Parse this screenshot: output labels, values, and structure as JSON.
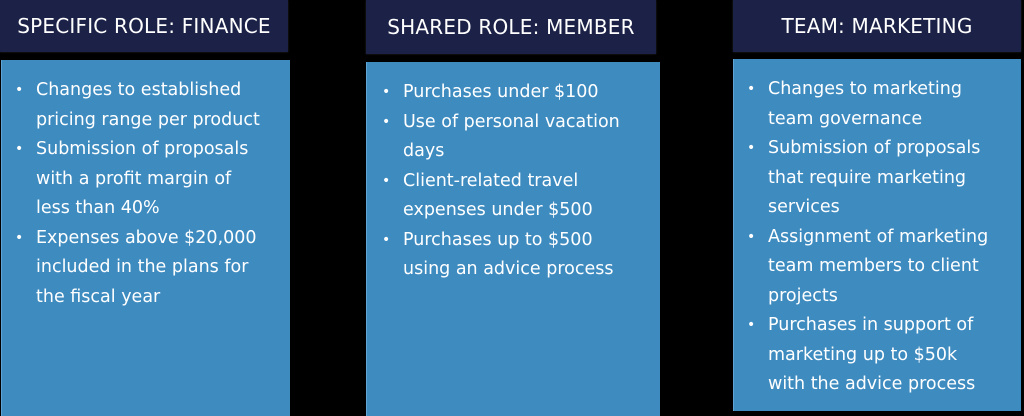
{
  "columns": [
    {
      "header": "SPECIFIC ROLE: FINANCE",
      "items": [
        {
          "line1": "Changes to established",
          "line2": "pricing range per product",
          "line3": ""
        },
        {
          "line1": "Submission of proposals",
          "line2": "with a profit margin of",
          "line3": "less than 40%"
        },
        {
          "line1": "Expenses above $20,000",
          "line2": "included in the plans for",
          "line3": "the fiscal year"
        }
      ]
    },
    {
      "header": "SHARED ROLE: MEMBER",
      "items": [
        {
          "line1": "Purchases under $100",
          "line2": "",
          "line3": ""
        },
        {
          "line1": "Use of personal vacation",
          "line2": "days",
          "line3": ""
        },
        {
          "line1": "Client-related travel",
          "line2": "expenses under $500",
          "line3": ""
        },
        {
          "line1": "Purchases up to $500",
          "line2": "using an advice process",
          "line3": ""
        }
      ]
    },
    {
      "header": "TEAM: MARKETING",
      "items": [
        {
          "line1": "Changes to marketing",
          "line2": "team governance",
          "line3": ""
        },
        {
          "line1": "Submission of proposals",
          "line2": "that require marketing",
          "line3": "services"
        },
        {
          "line1": "Assignment of marketing",
          "line2": "team members to client",
          "line3": "projects"
        },
        {
          "line1": "Purchases in support of",
          "line2": "marketing up to $50k",
          "line3": "with the advice process"
        }
      ]
    }
  ],
  "bullet_glyph": "•",
  "colors": {
    "background": "#000000",
    "header": "#1c2247",
    "panel": "#3e8bc0",
    "text": "#ffffff"
  }
}
